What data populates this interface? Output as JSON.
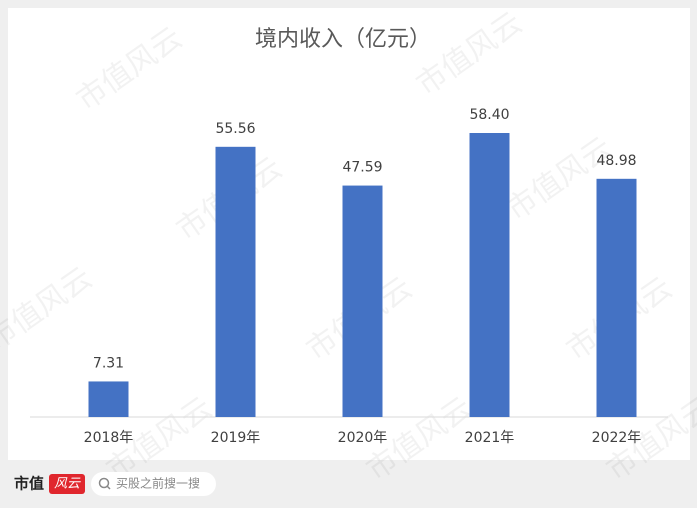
{
  "chart_data": {
    "type": "bar",
    "title": "境内收入（亿元）",
    "categories": [
      "2018年",
      "2019年",
      "2020年",
      "2021年",
      "2022年"
    ],
    "values": [
      7.31,
      55.56,
      47.59,
      58.4,
      48.98
    ],
    "value_labels": [
      "7.31",
      "55.56",
      "47.59",
      "58.40",
      "48.98"
    ],
    "color": "#4472c4"
  },
  "watermark": "市值风云",
  "footer": {
    "logo": "市值",
    "logo_badge": "风云",
    "search": "买股之前搜一搜"
  }
}
